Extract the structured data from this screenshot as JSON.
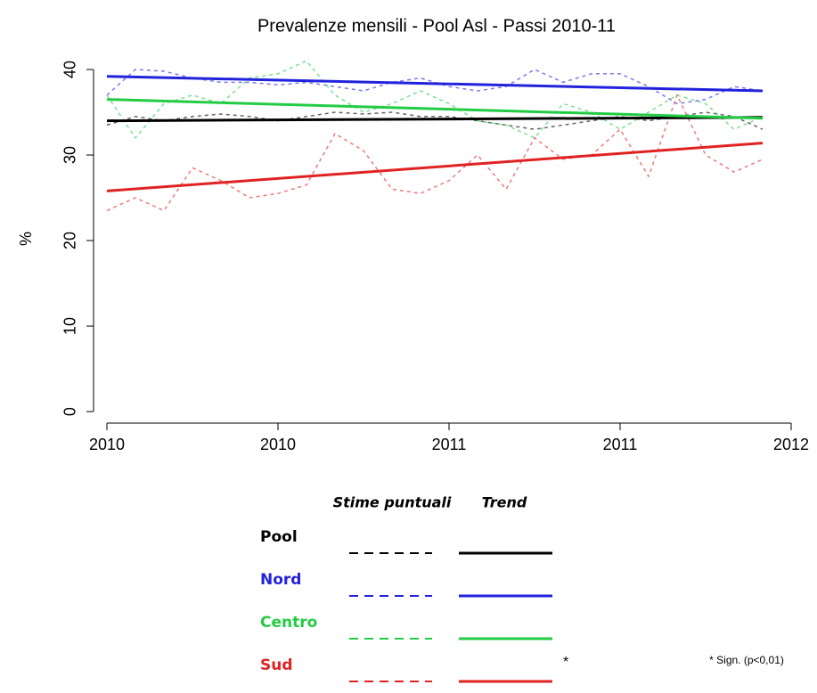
{
  "chart_data": {
    "type": "line",
    "title": "Prevalenze mensili - Pool Asl - Passi 2010-11",
    "y_label": "%",
    "x": [
      2010,
      2010.0833,
      2010.1667,
      2010.25,
      2010.3333,
      2010.4167,
      2010.5,
      2010.5833,
      2010.6667,
      2010.75,
      2010.8333,
      2010.9167,
      2011,
      2011.0833,
      2011.1667,
      2011.25,
      2011.3333,
      2011.4167,
      2011.5,
      2011.5833,
      2011.6667,
      2011.75,
      2011.8333,
      2011.9167
    ],
    "xlim": [
      2010,
      2012
    ],
    "xticks": [
      {
        "value": 2010,
        "label": "2010"
      },
      {
        "value": 2010.5,
        "label": "2010"
      },
      {
        "value": 2011,
        "label": "2011"
      },
      {
        "value": 2011.5,
        "label": "2011"
      },
      2012
    ],
    "ylim": [
      -1.4,
      42.4
    ],
    "yticks": [
      0,
      10,
      20,
      30,
      40
    ],
    "legend_headers": [
      "Stime puntuali",
      "Trend"
    ],
    "series": [
      {
        "name": "Pool",
        "color": "#000000",
        "values": [
          33.5,
          34.5,
          34,
          34.5,
          34.8,
          34.5,
          34,
          34.5,
          35,
          34.8,
          35,
          34.5,
          34.5,
          34,
          33.5,
          33,
          33.5,
          34,
          34.5,
          34,
          34.5,
          35,
          34.5,
          33
        ],
        "trend": {
          "x": [
            2010,
            2011.9167
          ],
          "values": [
            34,
            34.4
          ]
        }
      },
      {
        "name": "Nord",
        "color": "#2222dd",
        "values": [
          37,
          40,
          39.8,
          39,
          38.5,
          38.5,
          38.2,
          38.5,
          38,
          37.5,
          38.5,
          39,
          38,
          37.5,
          38,
          40,
          38.5,
          39.5,
          39.5,
          38,
          36,
          36.5,
          38,
          37.5
        ],
        "trend": {
          "x": [
            2010,
            2011.9167
          ],
          "values": [
            39.2,
            37.5
          ]
        }
      },
      {
        "name": "Centro",
        "color": "#22cc44",
        "values": [
          37,
          32,
          36,
          37,
          36,
          39,
          39.5,
          41,
          37,
          35,
          36,
          37.5,
          36,
          34,
          33.5,
          32,
          36,
          35,
          33,
          35,
          37,
          36,
          33,
          34.5
        ],
        "trend": {
          "x": [
            2010,
            2011.9167
          ],
          "values": [
            36.5,
            34.3
          ]
        }
      },
      {
        "name": "Sud",
        "color": "#e02222",
        "values": [
          23.5,
          25,
          23.5,
          28.5,
          27,
          25,
          25.5,
          26.5,
          32.5,
          30.5,
          26,
          25.5,
          27,
          30,
          26,
          32,
          29.5,
          30,
          33,
          27.5,
          37,
          30,
          28,
          29.5
        ],
        "trend": {
          "x": [
            2010,
            2011.9167
          ],
          "values": [
            25.8,
            31.4
          ]
        },
        "marker": "*"
      }
    ],
    "annotation": "* Sign. (p<0,01)"
  }
}
